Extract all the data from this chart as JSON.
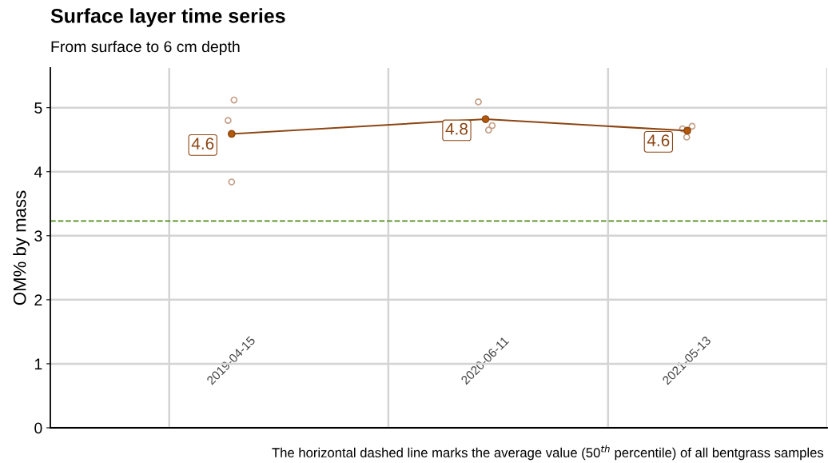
{
  "chart_data": {
    "type": "line",
    "title": "Surface layer time series",
    "subtitle": "From surface to 6 cm depth",
    "ylabel": "OM% by mass",
    "x": [
      "2019-04-15",
      "2020-06-11",
      "2021-05-13"
    ],
    "series": [
      {
        "type": "scatter",
        "color": "#c4a089",
        "marker": "circle",
        "x": [
          "2019-04-19",
          "2019-04-09",
          "2019-04-15",
          "2020-05-30",
          "2020-06-22",
          "2020-06-16",
          "2021-05-05",
          "2021-05-21",
          "2021-05-12"
        ],
        "values": [
          5.12,
          4.8,
          3.84,
          5.09,
          4.72,
          4.65,
          4.67,
          4.71,
          4.54
        ]
      },
      {
        "color": "#8b4513",
        "marker": "circle",
        "values": [
          4.59,
          4.82,
          4.64
        ],
        "value_labels": [
          "4.6",
          "4.8",
          "4.6"
        ]
      }
    ],
    "xlim": [
      "2018-06-17",
      "2022-01-01"
    ],
    "xticks": [
      {
        "value": "2019-01-01",
        "label": null
      },
      {
        "value": "2020-01-01",
        "label": null
      },
      {
        "value": "2021-01-01",
        "label": null
      },
      {
        "value": "2022-01-01",
        "label": null
      },
      {
        "value": "2019-04-15",
        "label": "2019-04-15"
      },
      {
        "value": "2020-06-11",
        "label": "2020-06-11"
      },
      {
        "value": "2021-05-13",
        "label": "2021-05-13"
      }
    ],
    "ylim": [
      0,
      5.62
    ],
    "yticks": [
      0,
      1,
      2,
      3,
      4,
      5
    ],
    "grid": true,
    "ref_lines": [
      {
        "axis": "y",
        "value": 3.23,
        "color": "#4d8c1a",
        "line_style": "dashed"
      }
    ],
    "annotations": [
      "The horizontal dashed line marks the average value (50$^{th}$ percentile) of all bentgrass samples"
    ]
  }
}
